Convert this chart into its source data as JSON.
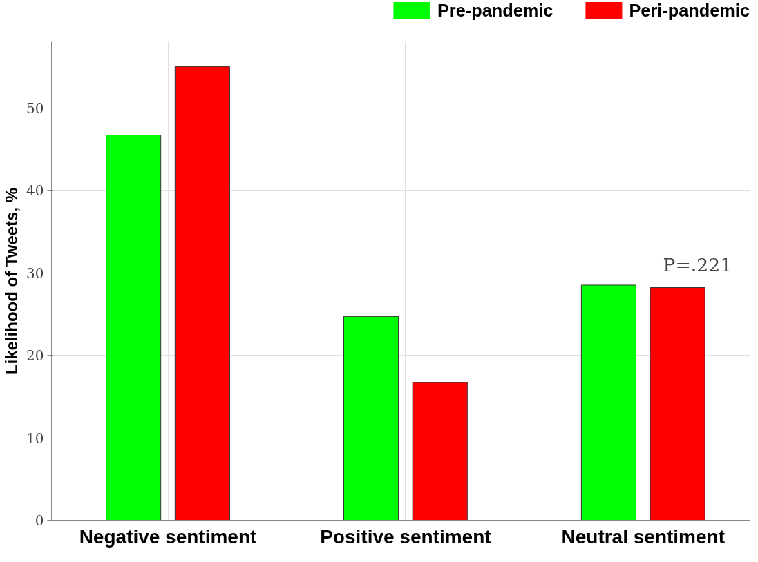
{
  "chart_data": {
    "type": "bar",
    "ylabel": "Likelihood of Tweets, %",
    "categories": [
      "Negative sentiment",
      "Positive sentiment",
      "Neutral sentiment"
    ],
    "series": [
      {
        "name": "Pre-pandemic",
        "color": "#00ff00",
        "values": [
          46.7,
          24.7,
          28.5
        ]
      },
      {
        "name": "Peri-pandemic",
        "color": "#ff0000",
        "values": [
          55.0,
          16.7,
          28.2
        ]
      }
    ],
    "ylim": [
      0,
      58
    ],
    "yticks": [
      0,
      10,
      20,
      30,
      40,
      50
    ],
    "grid": true,
    "legend": "top right",
    "annotations": [
      "P=.221"
    ]
  }
}
